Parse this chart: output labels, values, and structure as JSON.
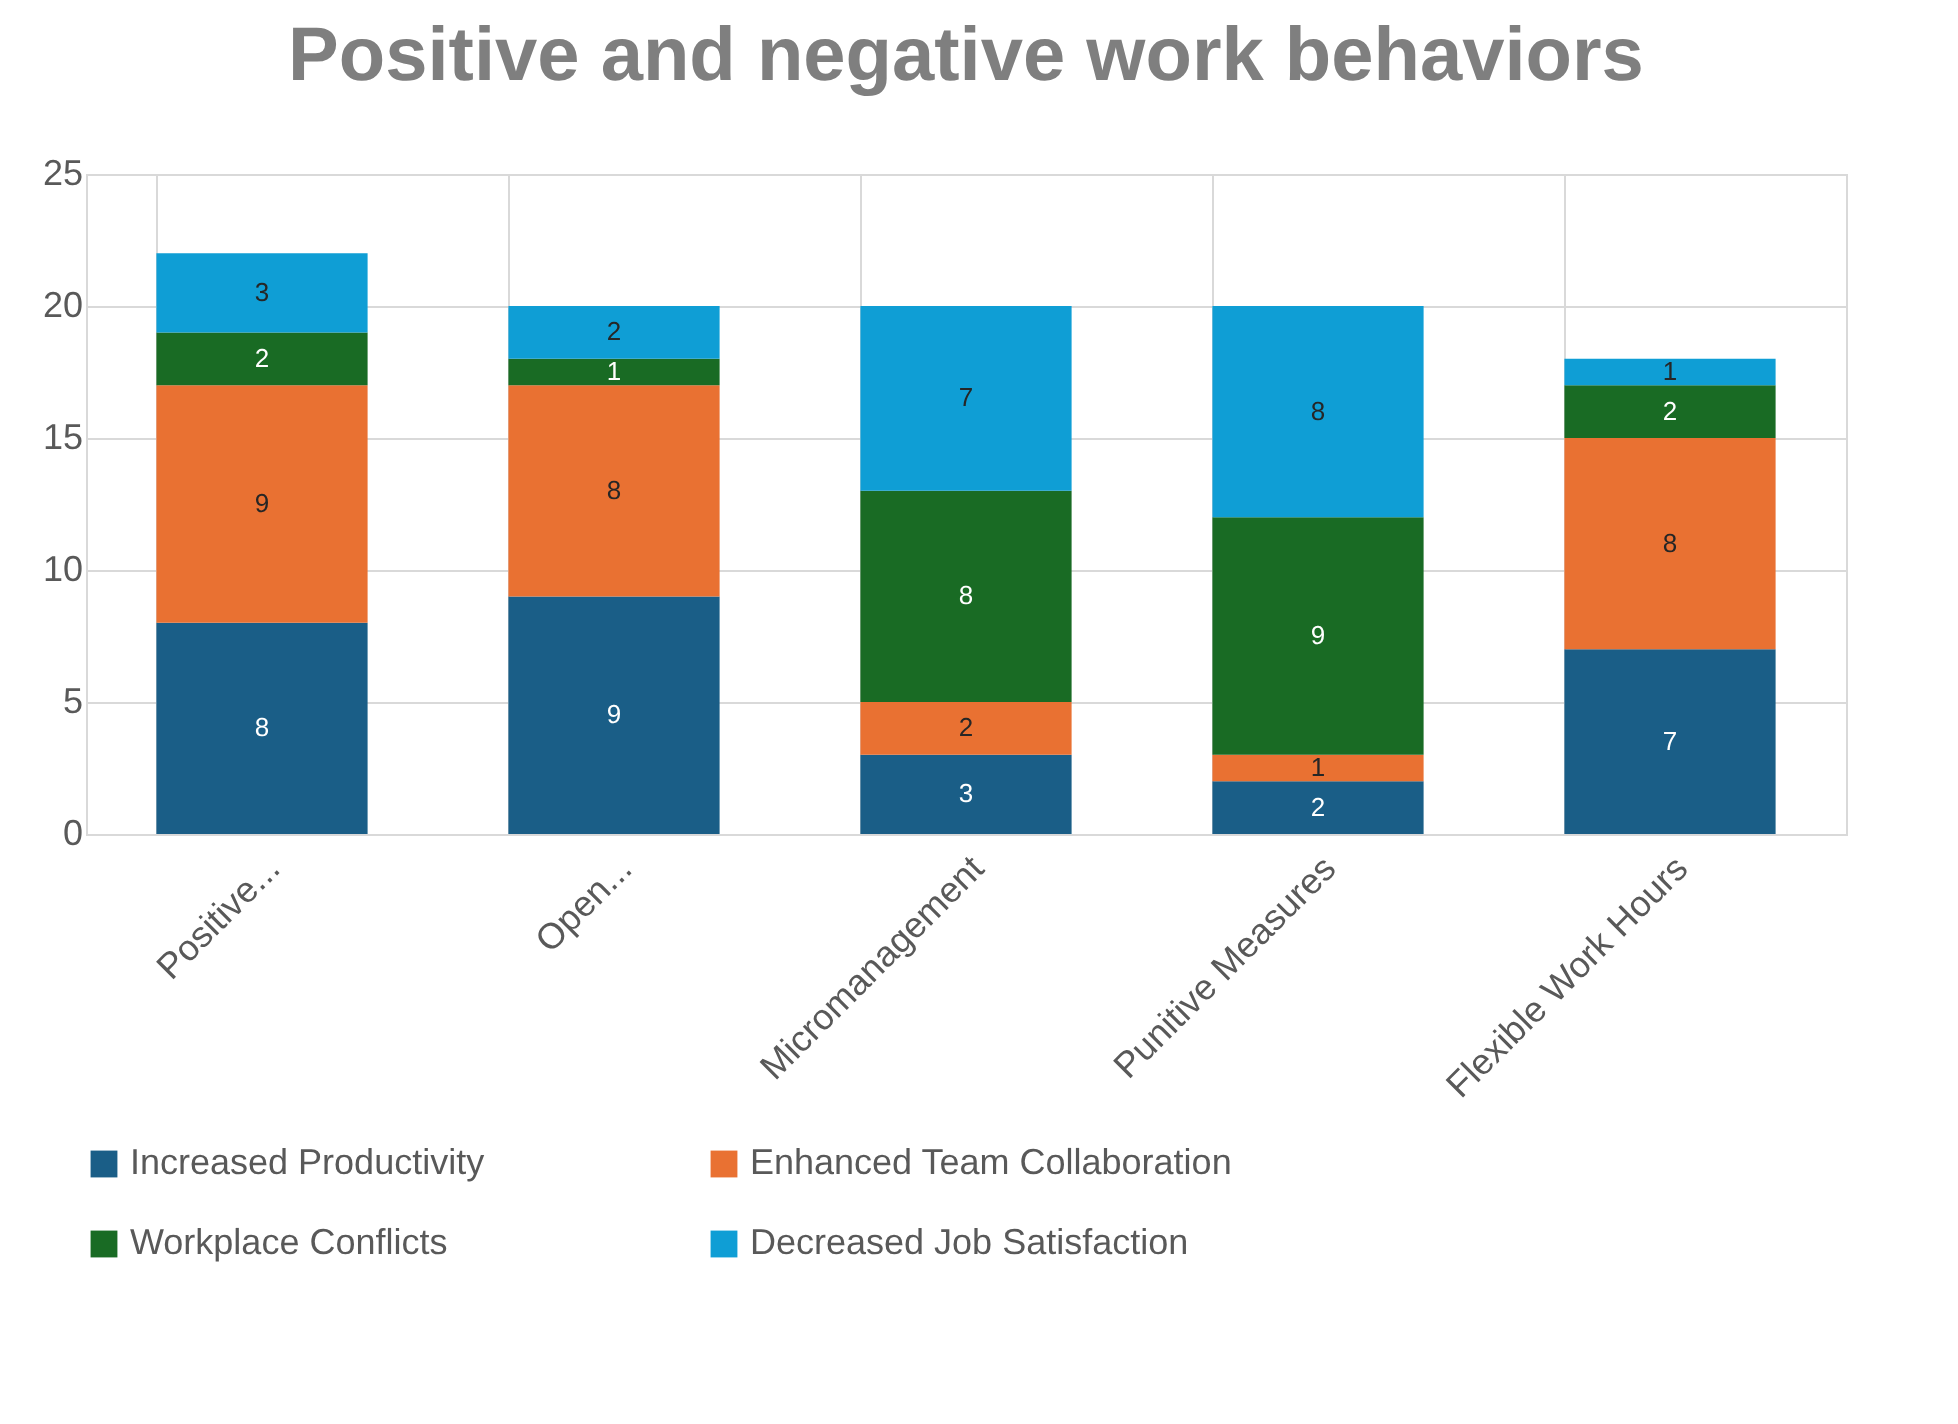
{
  "chart_data": {
    "type": "bar",
    "title": "Positive and negative work behaviors",
    "categories": [
      "Positive...",
      "Open...",
      "Micromanagement",
      "Punitive Measures",
      "Flexible Work Hours"
    ],
    "stacked": true,
    "data_labels": true,
    "grid": true,
    "legend": "bottom",
    "ylim": [
      0,
      25
    ],
    "yticks": [
      0,
      5,
      10,
      15,
      20,
      25
    ],
    "series": [
      {
        "name": "Increased Productivity",
        "color": "#1a5e87",
        "values": [
          8,
          9,
          3,
          2,
          7
        ]
      },
      {
        "name": "Enhanced Team Collaboration",
        "color": "#e97132",
        "values": [
          9,
          8,
          2,
          1,
          8
        ]
      },
      {
        "name": "Workplace Conflicts",
        "color": "#196b24",
        "values": [
          2,
          1,
          8,
          9,
          2
        ]
      },
      {
        "name": "Decreased Job Satisfaction",
        "color": "#0f9ed5",
        "values": [
          3,
          2,
          7,
          8,
          1
        ]
      }
    ]
  }
}
